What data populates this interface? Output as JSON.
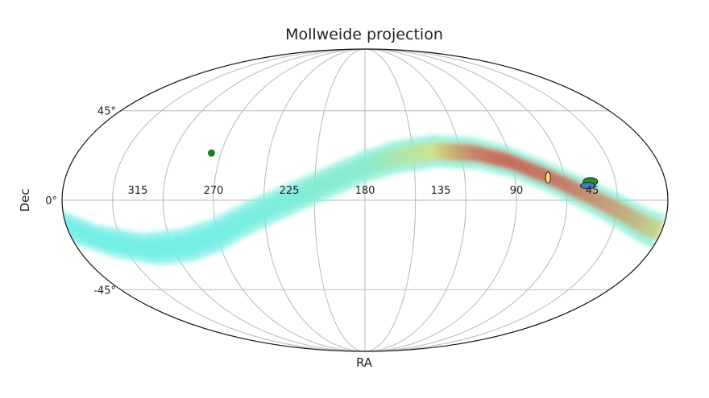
{
  "chart_data": {
    "type": "heatmap",
    "title": "Mollweide projection",
    "xlabel": "RA",
    "ylabel": "Dec",
    "projection": "mollweide",
    "grid": true,
    "ra_tick_labels": [
      "315",
      "270",
      "225",
      "180",
      "135",
      "90",
      "45"
    ],
    "dec_tick_labels": [
      "45°",
      "0°",
      "-45°"
    ],
    "ra_ticks_deg": [
      315,
      270,
      225,
      180,
      135,
      90,
      45
    ],
    "dec_ticks_deg": [
      45,
      0,
      -45
    ],
    "band_path": [
      {
        "ra": 360,
        "dec": -13
      },
      {
        "ra": 340,
        "dec": -20
      },
      {
        "ra": 315,
        "dec": -24
      },
      {
        "ra": 290,
        "dec": -22
      },
      {
        "ra": 270,
        "dec": -17
      },
      {
        "ra": 250,
        "dec": -9
      },
      {
        "ra": 225,
        "dec": 0
      },
      {
        "ra": 200,
        "dec": 9
      },
      {
        "ra": 180,
        "dec": 16
      },
      {
        "ra": 160,
        "dec": 21
      },
      {
        "ra": 135,
        "dec": 24
      },
      {
        "ra": 110,
        "dec": 23
      },
      {
        "ra": 90,
        "dec": 19
      },
      {
        "ra": 70,
        "dec": 12
      },
      {
        "ra": 50,
        "dec": 4
      },
      {
        "ra": 30,
        "dec": -4
      },
      {
        "ra": 10,
        "dec": -12
      },
      {
        "ra": 0,
        "dec": -15
      }
    ],
    "band_intensity": [
      {
        "ra": 360,
        "value": 0.05
      },
      {
        "ra": 270,
        "value": 0.05
      },
      {
        "ra": 180,
        "value": 0.15
      },
      {
        "ra": 140,
        "value": 0.45
      },
      {
        "ra": 110,
        "value": 0.85
      },
      {
        "ra": 90,
        "value": 0.95
      },
      {
        "ra": 60,
        "value": 0.9
      },
      {
        "ra": 40,
        "value": 0.8
      },
      {
        "ra": 20,
        "value": 0.7
      },
      {
        "ra": 0,
        "value": 0.55
      }
    ],
    "markers": [
      {
        "label": "point-270",
        "ra": 276,
        "dec": 23,
        "shape": "dot",
        "color": "#1a7f1a"
      },
      {
        "label": "ellipse-yellow",
        "ra": 70,
        "dec": 11,
        "shape": "ellipse",
        "color": "#f6e27a"
      },
      {
        "label": "ellipse-green",
        "ra": 45,
        "dec": 9,
        "shape": "ellipse",
        "color": "#2e8b2e"
      },
      {
        "label": "ellipse-blue",
        "ra": 47,
        "dec": 7,
        "shape": "ellipse",
        "color": "#3e7fb8"
      }
    ],
    "colors": {
      "low": "#66f0f0",
      "mid": "#d8e07a",
      "high": "#d0302a",
      "grid": "#b8b8b8",
      "outline": "#111111"
    }
  }
}
